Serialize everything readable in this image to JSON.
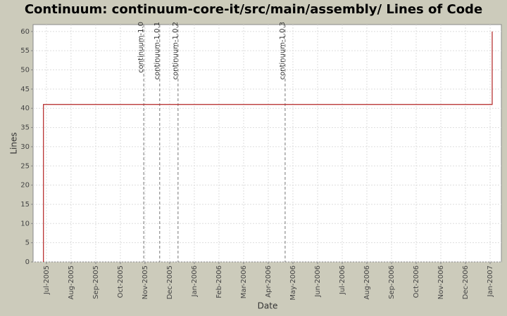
{
  "chart_data": {
    "type": "line",
    "step": true,
    "title": "Continuum: continuum-core-it/src/main/assembly/ Lines of Code",
    "x_label": "Date",
    "y_label": "Lines",
    "x": [
      2005.49,
      2005.49,
      2007.007
    ],
    "values": [
      0,
      41,
      60
    ],
    "color": "#b22222",
    "xlim": [
      2005.455,
      2007.038
    ],
    "ylim": [
      0,
      61.8
    ],
    "yticks": [
      0,
      5,
      10,
      15,
      20,
      25,
      30,
      35,
      40,
      45,
      50,
      55,
      60
    ],
    "xticks": [
      {
        "value": 2005.5,
        "label": "Jul-2005"
      },
      {
        "value": 2005.5833,
        "label": "Aug-2005"
      },
      {
        "value": 2005.6667,
        "label": "Sep-2005"
      },
      {
        "value": 2005.75,
        "label": "Oct-2005"
      },
      {
        "value": 2005.8333,
        "label": "Nov-2005"
      },
      {
        "value": 2005.9167,
        "label": "Dec-2005"
      },
      {
        "value": 2006.0,
        "label": "Jan-2006"
      },
      {
        "value": 2006.0833,
        "label": "Feb-2006"
      },
      {
        "value": 2006.1667,
        "label": "Mar-2006"
      },
      {
        "value": 2006.25,
        "label": "Apr-2006"
      },
      {
        "value": 2006.3333,
        "label": "May-2006"
      },
      {
        "value": 2006.4167,
        "label": "Jun-2006"
      },
      {
        "value": 2006.5,
        "label": "Jul-2006"
      },
      {
        "value": 2006.5833,
        "label": "Aug-2006"
      },
      {
        "value": 2006.6667,
        "label": "Sep-2006"
      },
      {
        "value": 2006.75,
        "label": "Oct-2006"
      },
      {
        "value": 2006.8333,
        "label": "Nov-2006"
      },
      {
        "value": 2006.9167,
        "label": "Dec-2006"
      },
      {
        "value": 2007.0,
        "label": "Jan-2007"
      }
    ],
    "markers": [
      {
        "value": 2005.829,
        "label": "continuum-1.0"
      },
      {
        "value": 2005.883,
        "label": "continuum-1.0.1"
      },
      {
        "value": 2005.945,
        "label": "continuum-1.0.2"
      },
      {
        "value": 2006.307,
        "label": "continuum-1.0.3"
      }
    ],
    "grid": true
  }
}
